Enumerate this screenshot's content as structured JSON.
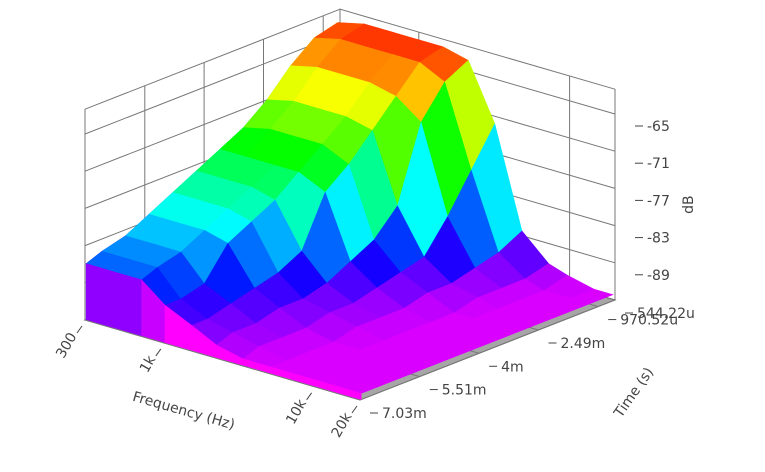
{
  "chart_data": {
    "type": "surface",
    "x_label": "Frequency (Hz)",
    "y_label": "Time (s)",
    "z_label": "dB",
    "xscale": "log",
    "grid": true,
    "xlim": [
      300,
      20000
    ],
    "ylim": [
      0.00054422,
      0.00703
    ],
    "zlim": [
      -95,
      -61
    ],
    "xticks": [
      300,
      {
        "value": 1000,
        "label": "1k"
      },
      {
        "value": 10000,
        "label": "10k"
      },
      {
        "value": 20000,
        "label": "20k"
      }
    ],
    "yticks": [
      {
        "value": 0.00054422,
        "label": "544.22u"
      },
      {
        "value": 0.00097052,
        "label": "970.52u"
      },
      {
        "value": 0.00249,
        "label": "2.49m"
      },
      {
        "value": 0.004,
        "label": "4m"
      },
      {
        "value": 0.00551,
        "label": "5.51m"
      },
      {
        "value": 0.00703,
        "label": "7.03m"
      }
    ],
    "zticks": [
      -65,
      -71,
      -77,
      -83,
      -89
    ],
    "x": [
      300,
      450,
      700,
      1000,
      1500,
      2200,
      3300,
      5000,
      7500,
      10000,
      15000,
      20000
    ],
    "y": [
      0.0006,
      0.0012,
      0.0018,
      0.0024,
      0.003,
      0.0036,
      0.0042,
      0.0048,
      0.0054,
      0.006,
      0.0066,
      0.007
    ],
    "z": [
      [
        -63,
        -62,
        -62,
        -62,
        -62,
        -63,
        -72,
        -88,
        -92,
        -93,
        -94,
        -94
      ],
      [
        -64,
        -63,
        -63,
        -63,
        -63,
        -65,
        -78,
        -90,
        -93,
        -94,
        -94,
        -94
      ],
      [
        -67,
        -66,
        -66,
        -66,
        -67,
        -70,
        -84,
        -91,
        -93,
        -94,
        -94,
        -94
      ],
      [
        -71,
        -70,
        -70,
        -70,
        -71,
        -82,
        -89,
        -92,
        -93,
        -94,
        -94,
        -94
      ],
      [
        -74,
        -73,
        -73,
        -73,
        -75,
        -86,
        -90,
        -92,
        -94,
        -94,
        -94,
        -94
      ],
      [
        -76,
        -76,
        -76,
        -76,
        -78,
        -88,
        -91,
        -93,
        -94,
        -94,
        -94,
        -94
      ],
      [
        -78,
        -78,
        -78,
        -79,
        -86,
        -90,
        -92,
        -93,
        -94,
        -94,
        -94,
        -94
      ],
      [
        -80,
        -80,
        -80,
        -81,
        -88,
        -91,
        -92,
        -93,
        -94,
        -94,
        -94,
        -94
      ],
      [
        -82,
        -82,
        -82,
        -83,
        -89,
        -91,
        -93,
        -94,
        -94,
        -94,
        -94,
        -94
      ],
      [
        -84,
        -84,
        -84,
        -88,
        -90,
        -92,
        -93,
        -94,
        -94,
        -94,
        -94,
        -94
      ],
      [
        -85,
        -85,
        -85,
        -89,
        -91,
        -92,
        -93,
        -94,
        -94,
        -94,
        -94,
        -94
      ],
      [
        -86,
        -86,
        -86,
        -89,
        -91,
        -93,
        -94,
        -94,
        -94,
        -94,
        -94,
        -94
      ]
    ]
  }
}
